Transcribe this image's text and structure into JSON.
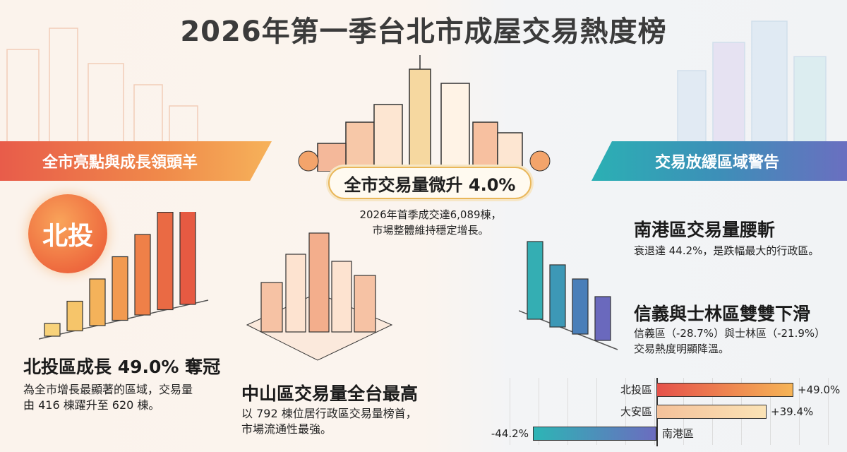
{
  "title": "2026年第一季台北市成屋交易熱度榜",
  "left_banner": "全市亮點與成長領頭羊",
  "right_banner": "交易放緩區域警告",
  "center": {
    "headline": "全市交易量微升 4.0%",
    "body_line1": "2026年首季成交達6,089棟，",
    "body_line2": "市場整體維持穩定增長。"
  },
  "beitou": {
    "badge": "北投",
    "headline": "北投區成長 49.0% 奪冠",
    "body_line1": "為全市增長最顯著的區域，交易量",
    "body_line2": "由 416 棟躍升至 620 棟。"
  },
  "zhongshan": {
    "headline": "中山區交易量全台最高",
    "body_line1": "以 792 棟位居行政區交易量榜首，",
    "body_line2": "市場流通性最強。"
  },
  "nangang": {
    "headline": "南港區交易量腰斬",
    "body": "衰退達 44.2%，是跌幅最大的行政區。"
  },
  "xinyi_shilin": {
    "headline": "信義與士林區雙雙下滑",
    "body_line1": "信義區（-28.7%）與士林區（-21.9%）",
    "body_line2": "交易熱度明顯降溫。"
  },
  "chart_data": {
    "type": "bar",
    "orientation": "horizontal",
    "categories": [
      "北投區",
      "大安區",
      "南港區"
    ],
    "values": [
      49.0,
      39.4,
      -44.2
    ],
    "value_labels": [
      "+49.0%",
      "+39.4%",
      "-44.2%"
    ],
    "unit": "%",
    "grid": true,
    "colors": [
      "#e8574a",
      "#f4c79c",
      "#2bb3b3"
    ]
  }
}
